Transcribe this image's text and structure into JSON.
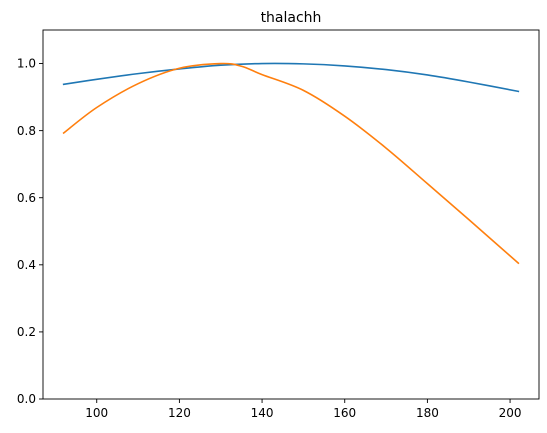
{
  "chart_data": {
    "type": "line",
    "title": "thalachh",
    "xlabel": "",
    "ylabel": "",
    "xlim": [
      87,
      207
    ],
    "ylim": [
      0.0,
      1.1
    ],
    "x_ticks": [
      100,
      120,
      140,
      160,
      180,
      200
    ],
    "x_tick_labels": [
      "100",
      "120",
      "140",
      "160",
      "180",
      "200"
    ],
    "y_ticks": [
      0.0,
      0.2,
      0.4,
      0.6,
      0.8,
      1.0
    ],
    "y_tick_labels": [
      "0.0",
      "0.2",
      "0.4",
      "0.6",
      "0.8",
      "1.0"
    ],
    "grid": false,
    "legend": "none",
    "series": [
      {
        "color": "#1f77b4",
        "x": [
          92,
          100,
          110,
          120,
          130,
          140,
          150,
          160,
          170,
          180,
          190,
          202
        ],
        "y": [
          0.938,
          0.953,
          0.97,
          0.984,
          0.995,
          1.0,
          0.999,
          0.993,
          0.982,
          0.966,
          0.945,
          0.917
        ]
      },
      {
        "color": "#ff7f0e",
        "x": [
          92,
          100,
          110,
          120,
          130,
          135,
          140,
          150,
          160,
          170,
          180,
          190,
          202
        ],
        "y": [
          0.793,
          0.869,
          0.94,
          0.986,
          1.0,
          0.992,
          0.967,
          0.92,
          0.843,
          0.748,
          0.642,
          0.535,
          0.405
        ]
      }
    ]
  }
}
